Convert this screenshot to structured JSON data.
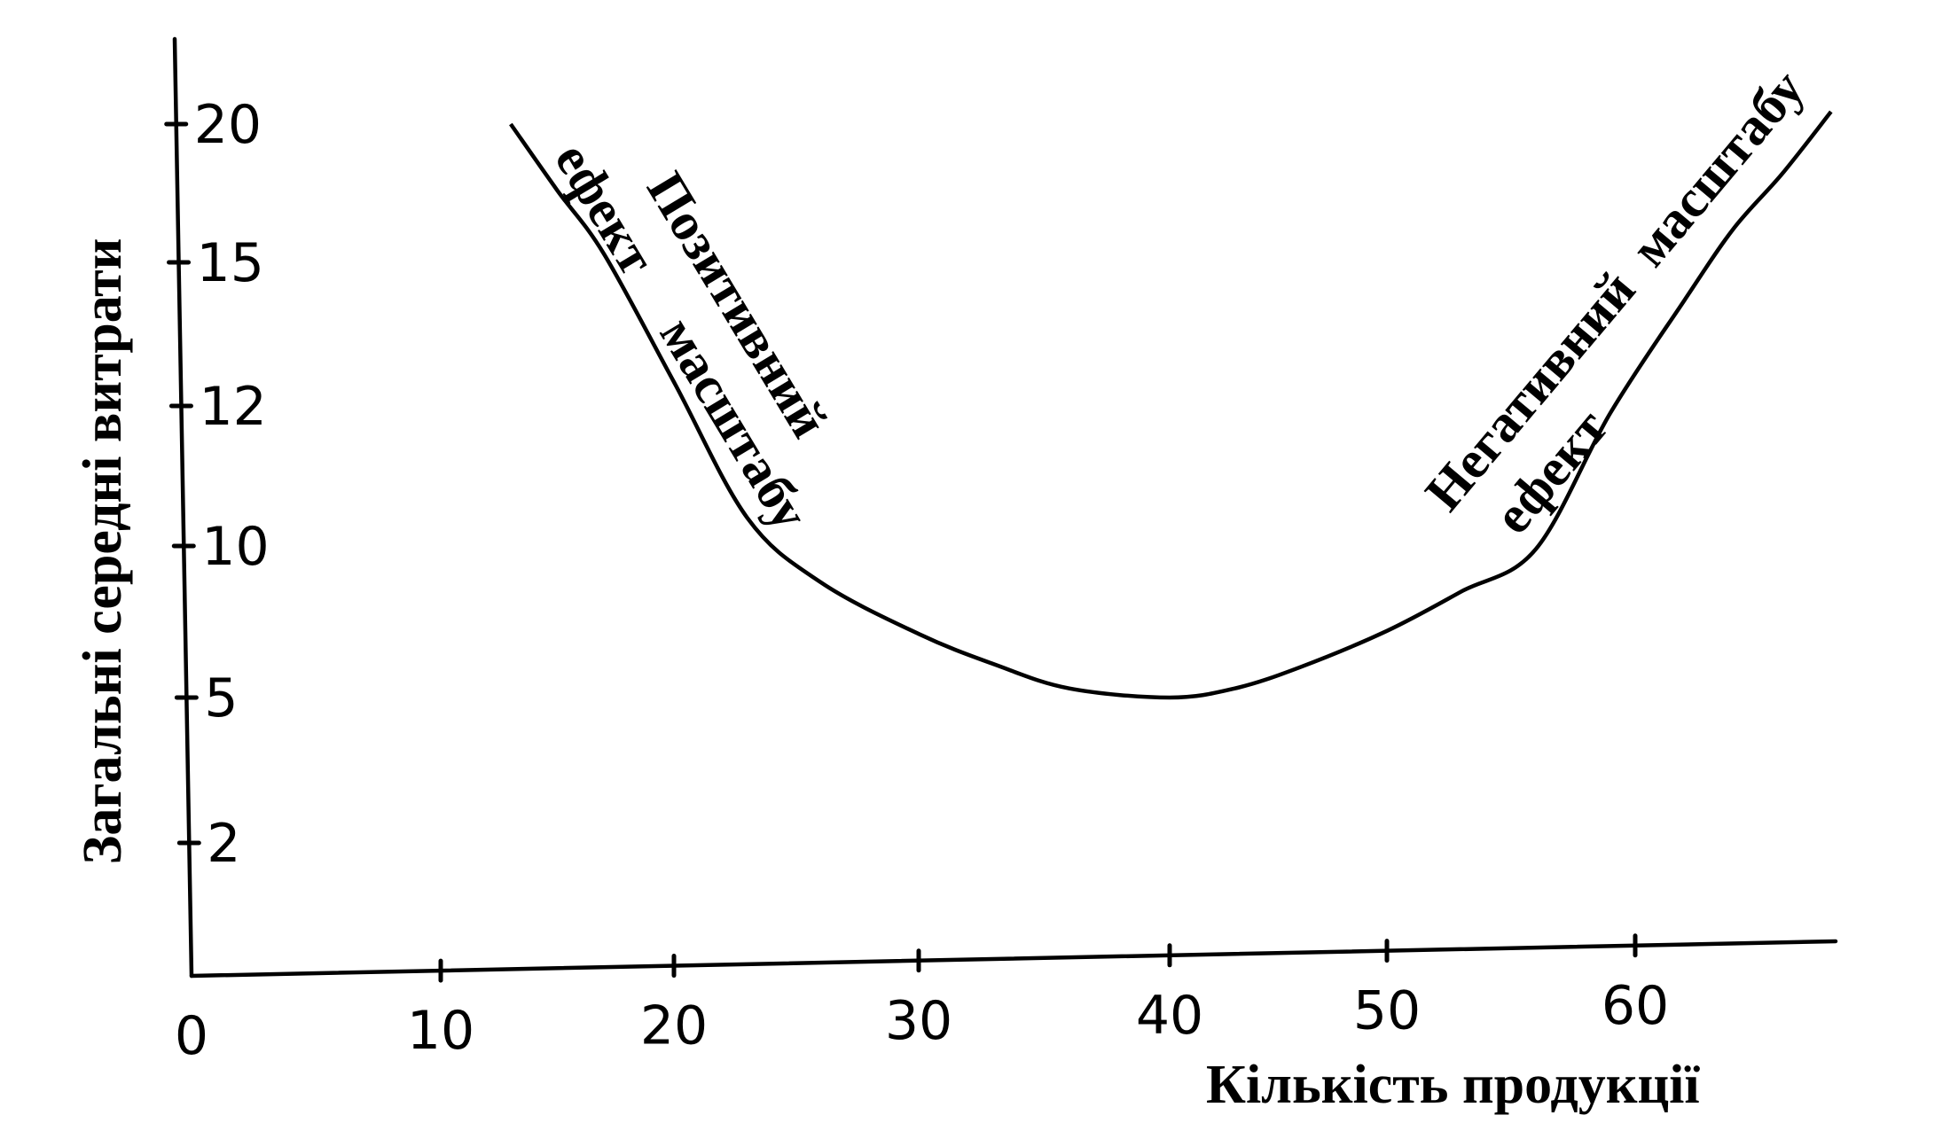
{
  "chart_data": {
    "type": "line",
    "title": "",
    "xlabel": "Кількість продукції",
    "ylabel": "Загальні середні витрати",
    "x_ticks": [
      0,
      10,
      20,
      30,
      40,
      50,
      60
    ],
    "y_ticks": [
      2,
      5,
      10,
      12,
      15,
      20
    ],
    "grid": false,
    "legend": "none",
    "series": [
      {
        "x": [
          13,
          15,
          17,
          20,
          23,
          26,
          30,
          33,
          36,
          40,
          43,
          46,
          50,
          53,
          56,
          59,
          62,
          64,
          66,
          68
        ],
        "y": [
          20,
          17.6,
          15.3,
          12.5,
          10.4,
          8.8,
          7.1,
          6.1,
          5.3,
          5.0,
          5.3,
          6.0,
          7.2,
          8.5,
          9.9,
          11.9,
          14.2,
          16.2,
          18.2,
          20.4
        ]
      }
    ],
    "annotations": [
      {
        "text1": "Позитивний",
        "text2": "ефект",
        "text3": "масштабу"
      },
      {
        "text1": "Негативний",
        "text2": "ефект",
        "text3": "масштабу"
      }
    ]
  },
  "colors": {
    "ink": "#000000",
    "background": "#ffffff"
  }
}
